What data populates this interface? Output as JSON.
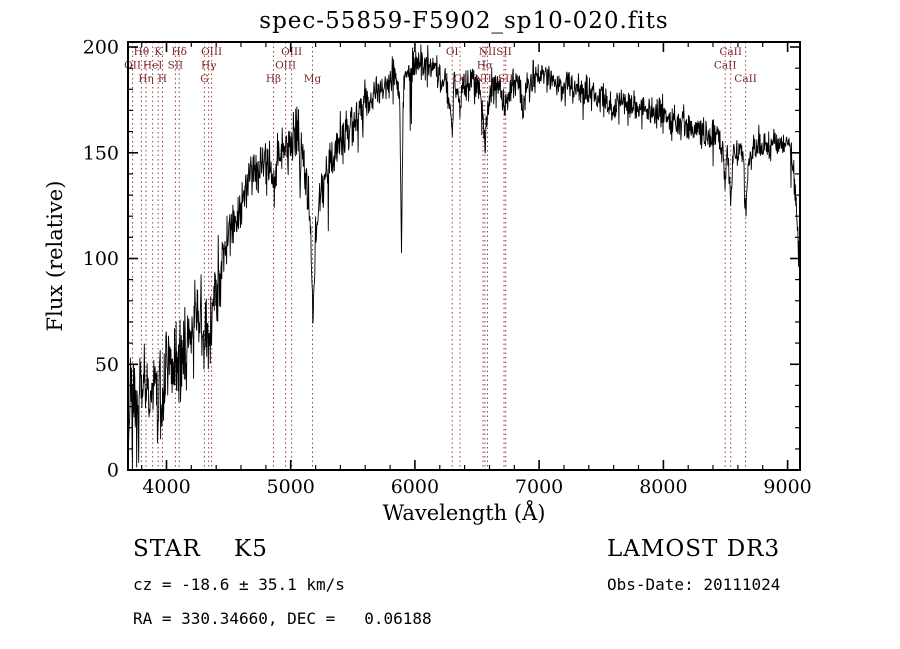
{
  "chart_data": {
    "type": "line",
    "title": "spec-55859-F5902_sp10-020.fits",
    "xlabel": "Wavelength (Å)",
    "ylabel": "Flux (relative)",
    "xlim": [
      3690,
      9100
    ],
    "ylim": [
      0,
      200
    ],
    "x_ticks": [
      4000,
      5000,
      6000,
      7000,
      8000,
      9000
    ],
    "y_ticks": [
      0,
      50,
      100,
      150,
      200
    ],
    "grid": false,
    "line_color": "#000000",
    "marker_color": "#9b3a3a",
    "marker_label_color": "#7a2424",
    "noise": {
      "sigma_blue": 10,
      "sigma_mid": 6.5,
      "sigma_red": 4,
      "blue_end": 4450,
      "mid_end": 5600,
      "seed": 7
    },
    "line_markers": [
      {
        "label": "OII",
        "wavelength": 3727,
        "row": 2
      },
      {
        "label": "Hθ",
        "wavelength": 3798,
        "row": 1
      },
      {
        "label": "Hη",
        "wavelength": 3835,
        "row": 3
      },
      {
        "label": "HeI",
        "wavelength": 3889,
        "row": 2
      },
      {
        "label": "K",
        "wavelength": 3933,
        "row": 1
      },
      {
        "label": "H",
        "wavelength": 3968,
        "row": 3
      },
      {
        "label": "SII",
        "wavelength": 4072,
        "row": 2
      },
      {
        "label": "Hδ",
        "wavelength": 4102,
        "row": 1
      },
      {
        "label": "G",
        "wavelength": 4305,
        "row": 3
      },
      {
        "label": "Hγ",
        "wavelength": 4340,
        "row": 2
      },
      {
        "label": "OIII",
        "wavelength": 4363,
        "row": 1
      },
      {
        "label": "Hβ",
        "wavelength": 4861,
        "row": 3
      },
      {
        "label": "OIII",
        "wavelength": 4959,
        "row": 2
      },
      {
        "label": "OIII",
        "wavelength": 5007,
        "row": 1
      },
      {
        "label": "Mg",
        "wavelength": 5175,
        "row": 3
      },
      {
        "label": "OI",
        "wavelength": 6300,
        "row": 1
      },
      {
        "label": "OI",
        "wavelength": 6363,
        "row": 3
      },
      {
        "label": "NII",
        "wavelength": 6548,
        "row": 3
      },
      {
        "label": "Hα",
        "wavelength": 6563,
        "row": 2
      },
      {
        "label": "NII",
        "wavelength": 6584,
        "row": 1
      },
      {
        "label": "SII",
        "wavelength": 6717,
        "row": 1
      },
      {
        "label": "SII",
        "wavelength": 6731,
        "row": 3
      },
      {
        "label": "CaII",
        "wavelength": 8498,
        "row": 2
      },
      {
        "label": "CaII",
        "wavelength": 8542,
        "row": 1
      },
      {
        "label": "CaII",
        "wavelength": 8662,
        "row": 3
      }
    ],
    "spectrum_anchors": [
      [
        3690,
        8
      ],
      [
        3700,
        30
      ],
      [
        3715,
        45
      ],
      [
        3730,
        22
      ],
      [
        3745,
        38
      ],
      [
        3760,
        12
      ],
      [
        3775,
        30
      ],
      [
        3790,
        42
      ],
      [
        3805,
        25
      ],
      [
        3820,
        44
      ],
      [
        3835,
        28
      ],
      [
        3850,
        46
      ],
      [
        3865,
        30
      ],
      [
        3880,
        44
      ],
      [
        3895,
        32
      ],
      [
        3910,
        48
      ],
      [
        3925,
        35
      ],
      [
        3933,
        22
      ],
      [
        3945,
        42
      ],
      [
        3955,
        35
      ],
      [
        3968,
        26
      ],
      [
        3980,
        42
      ],
      [
        4000,
        50
      ],
      [
        4030,
        44
      ],
      [
        4060,
        55
      ],
      [
        4090,
        48
      ],
      [
        4120,
        58
      ],
      [
        4150,
        56
      ],
      [
        4180,
        62
      ],
      [
        4210,
        66
      ],
      [
        4240,
        70
      ],
      [
        4270,
        74
      ],
      [
        4300,
        58
      ],
      [
        4320,
        64
      ],
      [
        4340,
        60
      ],
      [
        4360,
        70
      ],
      [
        4390,
        82
      ],
      [
        4420,
        94
      ],
      [
        4450,
        102
      ],
      [
        4480,
        108
      ],
      [
        4510,
        112
      ],
      [
        4540,
        118
      ],
      [
        4570,
        121
      ],
      [
        4600,
        125
      ],
      [
        4630,
        130
      ],
      [
        4660,
        137
      ],
      [
        4690,
        144
      ],
      [
        4720,
        147
      ],
      [
        4750,
        140
      ],
      [
        4780,
        145
      ],
      [
        4820,
        150
      ],
      [
        4861,
        134
      ],
      [
        4890,
        147
      ],
      [
        4920,
        150
      ],
      [
        4950,
        153
      ],
      [
        4980,
        150
      ],
      [
        5010,
        156
      ],
      [
        5040,
        159
      ],
      [
        5070,
        152
      ],
      [
        5100,
        148
      ],
      [
        5130,
        138
      ],
      [
        5160,
        118
      ],
      [
        5180,
        72
      ],
      [
        5200,
        108
      ],
      [
        5230,
        128
      ],
      [
        5260,
        136
      ],
      [
        5290,
        142
      ],
      [
        5320,
        146
      ],
      [
        5350,
        149
      ],
      [
        5380,
        152
      ],
      [
        5410,
        155
      ],
      [
        5440,
        158
      ],
      [
        5470,
        161
      ],
      [
        5500,
        164
      ],
      [
        5530,
        167
      ],
      [
        5560,
        170
      ],
      [
        5590,
        172
      ],
      [
        5620,
        174
      ],
      [
        5650,
        176
      ],
      [
        5680,
        178
      ],
      [
        5710,
        179
      ],
      [
        5740,
        181
      ],
      [
        5770,
        183
      ],
      [
        5800,
        185
      ],
      [
        5830,
        186
      ],
      [
        5860,
        184
      ],
      [
        5880,
        168
      ],
      [
        5891,
        96
      ],
      [
        5902,
        172
      ],
      [
        5920,
        186
      ],
      [
        5950,
        189
      ],
      [
        5980,
        191
      ],
      [
        6010,
        193
      ],
      [
        6040,
        194
      ],
      [
        6070,
        193
      ],
      [
        6100,
        192
      ],
      [
        6130,
        190
      ],
      [
        6160,
        189
      ],
      [
        6190,
        188
      ],
      [
        6220,
        186
      ],
      [
        6250,
        182
      ],
      [
        6280,
        170
      ],
      [
        6300,
        163
      ],
      [
        6315,
        183
      ],
      [
        6340,
        180
      ],
      [
        6363,
        172
      ],
      [
        6385,
        181
      ],
      [
        6410,
        183
      ],
      [
        6440,
        185
      ],
      [
        6470,
        184
      ],
      [
        6500,
        182
      ],
      [
        6530,
        178
      ],
      [
        6548,
        170
      ],
      [
        6563,
        150
      ],
      [
        6580,
        172
      ],
      [
        6600,
        180
      ],
      [
        6630,
        182
      ],
      [
        6660,
        183
      ],
      [
        6690,
        181
      ],
      [
        6717,
        174
      ],
      [
        6731,
        172
      ],
      [
        6760,
        180
      ],
      [
        6790,
        183
      ],
      [
        6820,
        184
      ],
      [
        6850,
        178
      ],
      [
        6870,
        168
      ],
      [
        6890,
        180
      ],
      [
        6920,
        184
      ],
      [
        6950,
        185
      ],
      [
        6980,
        186
      ],
      [
        7010,
        187
      ],
      [
        7040,
        188
      ],
      [
        7070,
        186
      ],
      [
        7100,
        184
      ],
      [
        7130,
        182
      ],
      [
        7160,
        181
      ],
      [
        7200,
        180
      ],
      [
        7250,
        182
      ],
      [
        7300,
        181
      ],
      [
        7350,
        180
      ],
      [
        7400,
        179
      ],
      [
        7450,
        178
      ],
      [
        7500,
        177
      ],
      [
        7550,
        174
      ],
      [
        7600,
        168
      ],
      [
        7640,
        174
      ],
      [
        7680,
        174
      ],
      [
        7720,
        173
      ],
      [
        7760,
        172
      ],
      [
        7800,
        171
      ],
      [
        7850,
        170
      ],
      [
        7900,
        169
      ],
      [
        7950,
        168
      ],
      [
        8000,
        167
      ],
      [
        8050,
        165
      ],
      [
        8100,
        164
      ],
      [
        8150,
        163
      ],
      [
        8200,
        162
      ],
      [
        8250,
        161
      ],
      [
        8300,
        161
      ],
      [
        8350,
        160
      ],
      [
        8400,
        159
      ],
      [
        8450,
        157
      ],
      [
        8480,
        150
      ],
      [
        8498,
        136
      ],
      [
        8515,
        152
      ],
      [
        8542,
        126
      ],
      [
        8560,
        148
      ],
      [
        8590,
        152
      ],
      [
        8620,
        153
      ],
      [
        8645,
        145
      ],
      [
        8662,
        123
      ],
      [
        8680,
        142
      ],
      [
        8700,
        149
      ],
      [
        8730,
        151
      ],
      [
        8760,
        153
      ],
      [
        8790,
        152
      ],
      [
        8820,
        154
      ],
      [
        8850,
        153
      ],
      [
        8880,
        155
      ],
      [
        8910,
        154
      ],
      [
        8940,
        153
      ],
      [
        8970,
        154
      ],
      [
        9000,
        154
      ],
      [
        9030,
        151
      ],
      [
        9060,
        135
      ],
      [
        9080,
        112
      ],
      [
        9100,
        92
      ]
    ]
  },
  "annotations": {
    "class_label": "STAR    K5",
    "survey": "LAMOST DR3",
    "cz": "cz = -18.6 ± 35.1 km/s",
    "obs_date": "Obs-Date: 20111024",
    "coords": "RA = 330.34660, DEC =   0.06188"
  }
}
